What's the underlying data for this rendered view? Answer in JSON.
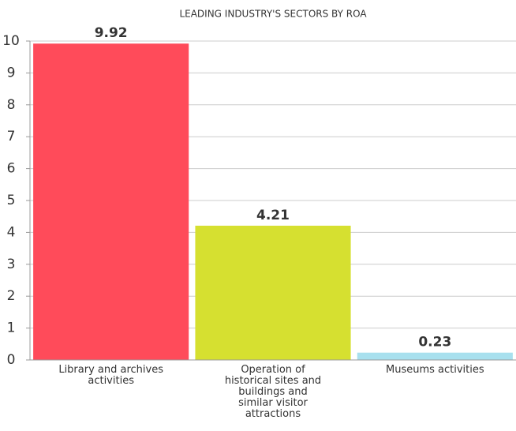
{
  "chart_data": {
    "type": "bar",
    "title": "LEADING INDUSTRY'S SECTORS BY ROA",
    "categories": [
      "Library and archives activities",
      "Operation of historical sites and buildings and similar visitor attractions",
      "Museums activities"
    ],
    "values": [
      9.92,
      4.21,
      0.23
    ],
    "colors": [
      "#ff4b5a",
      "#d6e030",
      "#a8e0ee"
    ],
    "ylim": [
      0,
      10
    ],
    "yticks": [
      0,
      1,
      2,
      3,
      4,
      5,
      6,
      7,
      8,
      9,
      10
    ],
    "grid": true
  }
}
